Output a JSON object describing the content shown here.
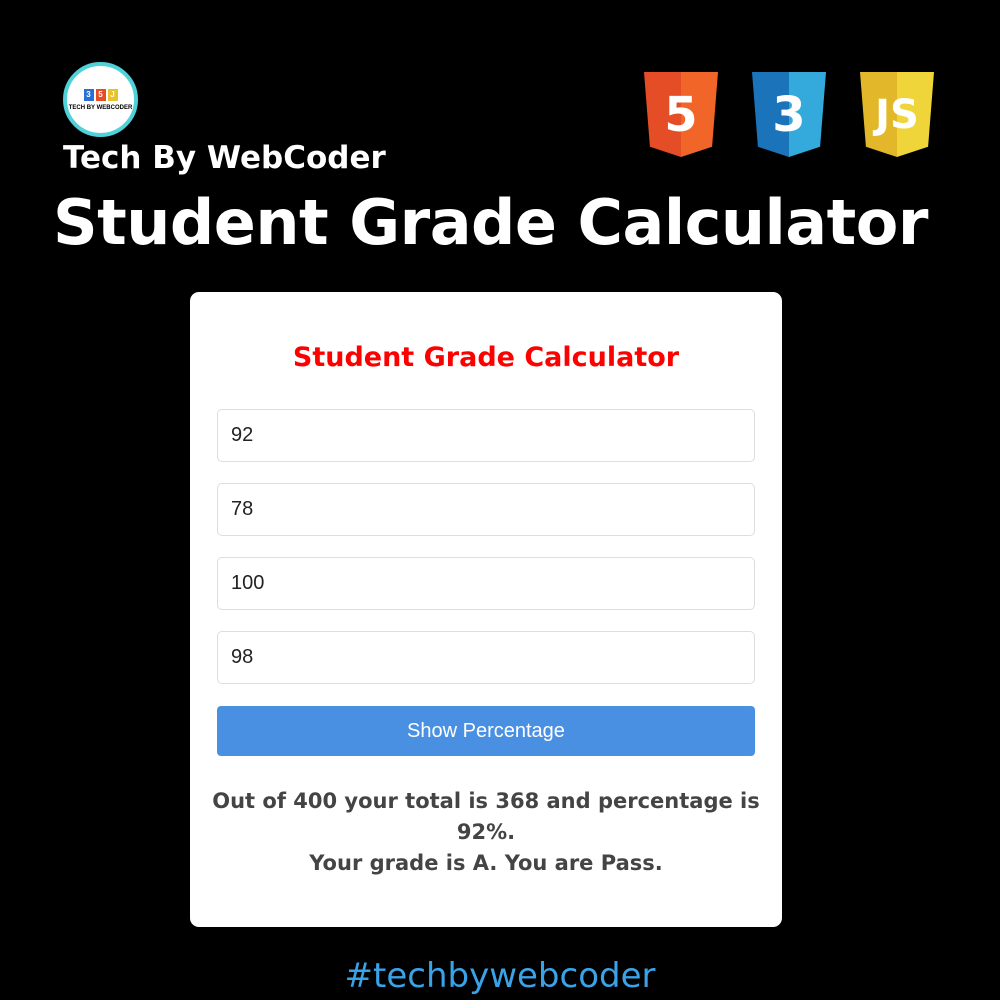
{
  "brand": {
    "name": "Tech By WebCoder",
    "logo_text": "TECH BY WEBCODER"
  },
  "headline": "Student Grade Calculator",
  "tech_badges": [
    {
      "label": "5",
      "color": "#e44d26"
    },
    {
      "label": "3",
      "color": "#1b73ba"
    },
    {
      "label": "JS",
      "color": "#e7c22d"
    }
  ],
  "card": {
    "title": "Student Grade Calculator",
    "inputs": [
      "92",
      "78",
      "100",
      "98"
    ],
    "button": "Show Percentage",
    "result_line1": "Out of 400 your total is 368 and percentage is 92%.",
    "result_line2": "Your grade is A. You are Pass."
  },
  "hashtag": "#techbywebcoder"
}
